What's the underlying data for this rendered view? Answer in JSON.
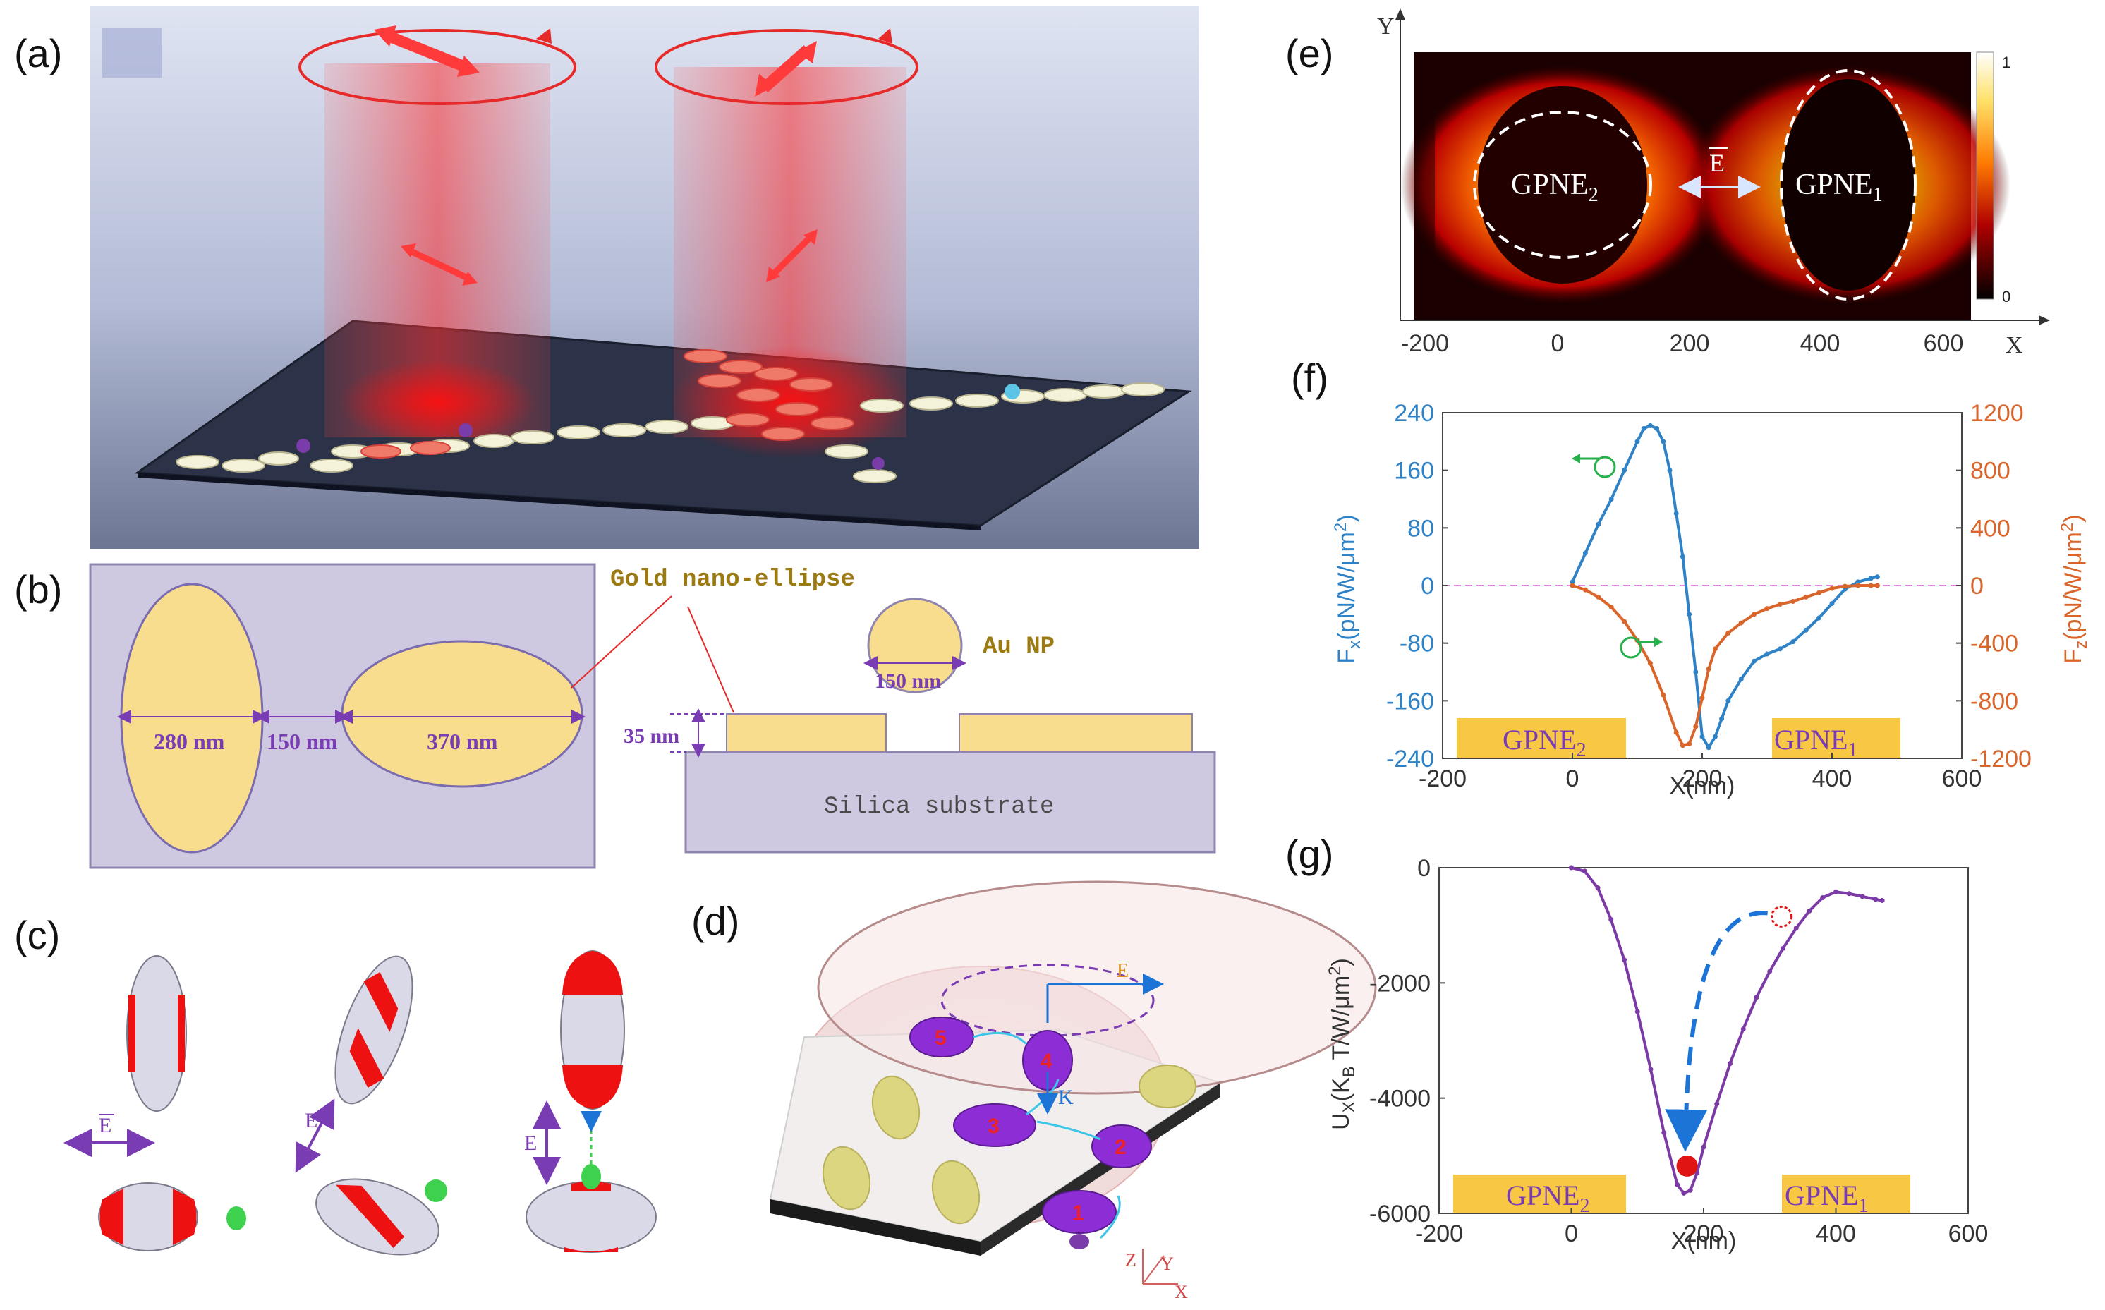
{
  "panels": {
    "a": {
      "label": "(a)"
    },
    "b": {
      "label": "(b)",
      "gold_title": "Gold nano-ellipse",
      "dim_280": "280 nm",
      "dim_150": "150 nm",
      "dim_370": "370 nm",
      "np_size": "150 nm",
      "np_label": "Au NP",
      "thickness": "35 nm",
      "substrate": "Silica substrate"
    },
    "c": {
      "label": "(c)",
      "e_label": "E"
    },
    "d": {
      "label": "(d)",
      "e_label": "E",
      "k_label": "K",
      "numbers": [
        "1",
        "2",
        "3",
        "4",
        "5"
      ],
      "axes": [
        "Z",
        "Y",
        "X"
      ]
    },
    "e": {
      "label": "(e)",
      "axis_y": "Y",
      "axis_x": "X",
      "left_label_main": "GPNE",
      "left_label_sub": "2",
      "right_label_main": "GPNE",
      "right_label_sub": "1",
      "e_label": "E",
      "colorbar_max": "1",
      "colorbar_min": "0",
      "x_ticks": [
        "-200",
        "0",
        "200",
        "400",
        "600"
      ]
    },
    "f": {
      "label": "(f)",
      "region_left_main": "GPNE",
      "region_left_sub": "2",
      "region_right_main": "GPNE",
      "region_right_sub": "1",
      "colors": {
        "fx": "#2f82c6",
        "fz": "#d9652b",
        "zero": "#e77fe0"
      }
    },
    "g": {
      "label": "(g)",
      "region_left_main": "GPNE",
      "region_left_sub": "2",
      "region_right_main": "GPNE",
      "region_right_sub": "1",
      "colors": {
        "u": "#7b3aa6",
        "dash": "#1b74d6",
        "ball": "#e11414"
      }
    }
  },
  "chart_data": [
    {
      "type": "line",
      "panel": "f",
      "xlabel": "X(nm)",
      "ylabel_left_main": "F",
      "ylabel_left_sub": "x",
      "ylabel_left_units": "(pN/W/μm",
      "ylabel_left_sup": "2",
      "ylabel_left_close": ")",
      "ylabel_right_main": "F",
      "ylabel_right_sub": "z",
      "ylabel_right_units": "(pN/W/μm",
      "ylabel_right_sup": "2",
      "ylabel_right_close": ")",
      "xlim": [
        -200,
        600
      ],
      "ylim_left": [
        -240,
        240
      ],
      "ylim_right": [
        -1200,
        1200
      ],
      "x_ticks": [
        "-200",
        "0",
        "200",
        "400",
        "600"
      ],
      "y_ticks_left": [
        "240",
        "160",
        "80",
        "0",
        "-80",
        "-160",
        "-240"
      ],
      "y_ticks_right": [
        "1200",
        "800",
        "400",
        "0",
        "-400",
        "-800",
        "-1200"
      ],
      "series": [
        {
          "name": "Fx",
          "axis": "left",
          "x": [
            0,
            20,
            40,
            60,
            80,
            100,
            110,
            120,
            130,
            140,
            150,
            160,
            170,
            180,
            190,
            200,
            210,
            220,
            230,
            240,
            260,
            280,
            300,
            320,
            340,
            360,
            380,
            400,
            420,
            440,
            460,
            470
          ],
          "values": [
            5,
            45,
            85,
            120,
            160,
            200,
            218,
            222,
            218,
            200,
            160,
            100,
            40,
            -40,
            -120,
            -210,
            -225,
            -210,
            -185,
            -160,
            -130,
            -105,
            -95,
            -88,
            -78,
            -62,
            -45,
            -25,
            -5,
            5,
            10,
            12
          ]
        },
        {
          "name": "Fz",
          "axis": "right",
          "x": [
            0,
            20,
            40,
            60,
            80,
            100,
            120,
            140,
            160,
            170,
            180,
            190,
            200,
            210,
            220,
            240,
            260,
            280,
            300,
            320,
            340,
            360,
            380,
            400,
            420,
            440,
            460,
            470
          ],
          "values": [
            0,
            -30,
            -80,
            -150,
            -250,
            -380,
            -540,
            -760,
            -1020,
            -1110,
            -1100,
            -980,
            -780,
            -580,
            -440,
            -330,
            -260,
            -200,
            -160,
            -130,
            -110,
            -80,
            -50,
            -20,
            -5,
            0,
            0,
            0
          ]
        }
      ],
      "zero_line": 0
    },
    {
      "type": "line",
      "panel": "g",
      "xlabel": "X(nm)",
      "ylabel_main": "U",
      "ylabel_sub": "X",
      "ylabel_units": "(K",
      "ylabel_units_sub": "B",
      "ylabel_units_rest": " T/W/μm",
      "ylabel_units_sup": "2",
      "ylabel_close": ")",
      "xlim": [
        -200,
        600
      ],
      "ylim": [
        -6000,
        0
      ],
      "x_ticks": [
        "-200",
        "0",
        "200",
        "400",
        "600"
      ],
      "y_ticks": [
        "0",
        "-2000",
        "-4000",
        "-6000"
      ],
      "series": [
        {
          "name": "Ux",
          "x": [
            0,
            20,
            40,
            60,
            80,
            100,
            120,
            140,
            160,
            170,
            180,
            190,
            200,
            220,
            240,
            260,
            280,
            300,
            320,
            340,
            360,
            380,
            400,
            420,
            440,
            460,
            470
          ],
          "values": [
            0,
            -60,
            -350,
            -900,
            -1600,
            -2500,
            -3500,
            -4600,
            -5500,
            -5650,
            -5600,
            -5300,
            -4850,
            -4100,
            -3400,
            -2800,
            -2250,
            -1800,
            -1400,
            -1050,
            -750,
            -520,
            -420,
            -450,
            -500,
            -550,
            -570
          ]
        }
      ],
      "markers": {
        "stable_x": 175,
        "stable_y": -5300,
        "start_x": 318,
        "start_y": -850
      }
    }
  ]
}
